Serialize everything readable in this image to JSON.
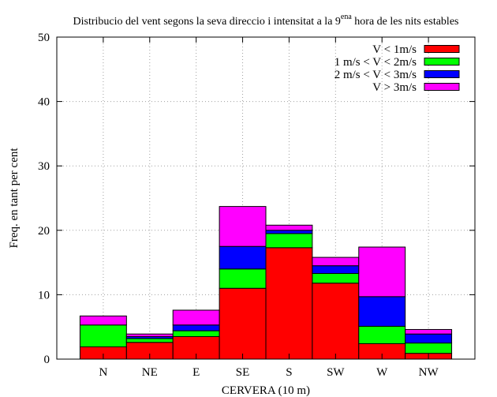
{
  "chart_data": {
    "type": "bar",
    "stacked": true,
    "title": "Distribucio del vent segons la seva direccio i intensitat a la 9ena hora de les nits estables",
    "title_parts": {
      "before": "Distribucio del vent segons la seva direccio i intensitat a la 9",
      "superscript": "ena",
      "after": " hora de les nits estables"
    },
    "xlabel": "CERVERA (10 m)",
    "ylabel": "Freq. en tant per cent",
    "ylim": [
      0,
      50
    ],
    "yticks": [
      "0",
      "10",
      "20",
      "30",
      "40",
      "50"
    ],
    "grid": true,
    "legend_position": "top-right",
    "categories": [
      "N",
      "NE",
      "E",
      "SE",
      "S",
      "SW",
      "W",
      "NW"
    ],
    "series": [
      {
        "name": "V < 1m/s",
        "color": "#ff0000",
        "values": [
          1.9,
          2.6,
          3.5,
          11.0,
          17.3,
          11.8,
          2.4,
          0.9
        ]
      },
      {
        "name": "1 m/s < V < 2m/s",
        "color": "#00ff00",
        "values": [
          3.4,
          0.6,
          0.9,
          3.0,
          2.2,
          1.5,
          2.7,
          1.6
        ]
      },
      {
        "name": "2 m/s < V < 3m/s",
        "color": "#0000ff",
        "values": [
          0.0,
          0.3,
          0.9,
          3.5,
          0.5,
          1.2,
          4.6,
          1.4
        ]
      },
      {
        "name": "V > 3m/s",
        "color": "#ff00ff",
        "values": [
          1.4,
          0.4,
          2.3,
          6.2,
          0.8,
          1.3,
          7.7,
          0.7
        ]
      }
    ]
  }
}
